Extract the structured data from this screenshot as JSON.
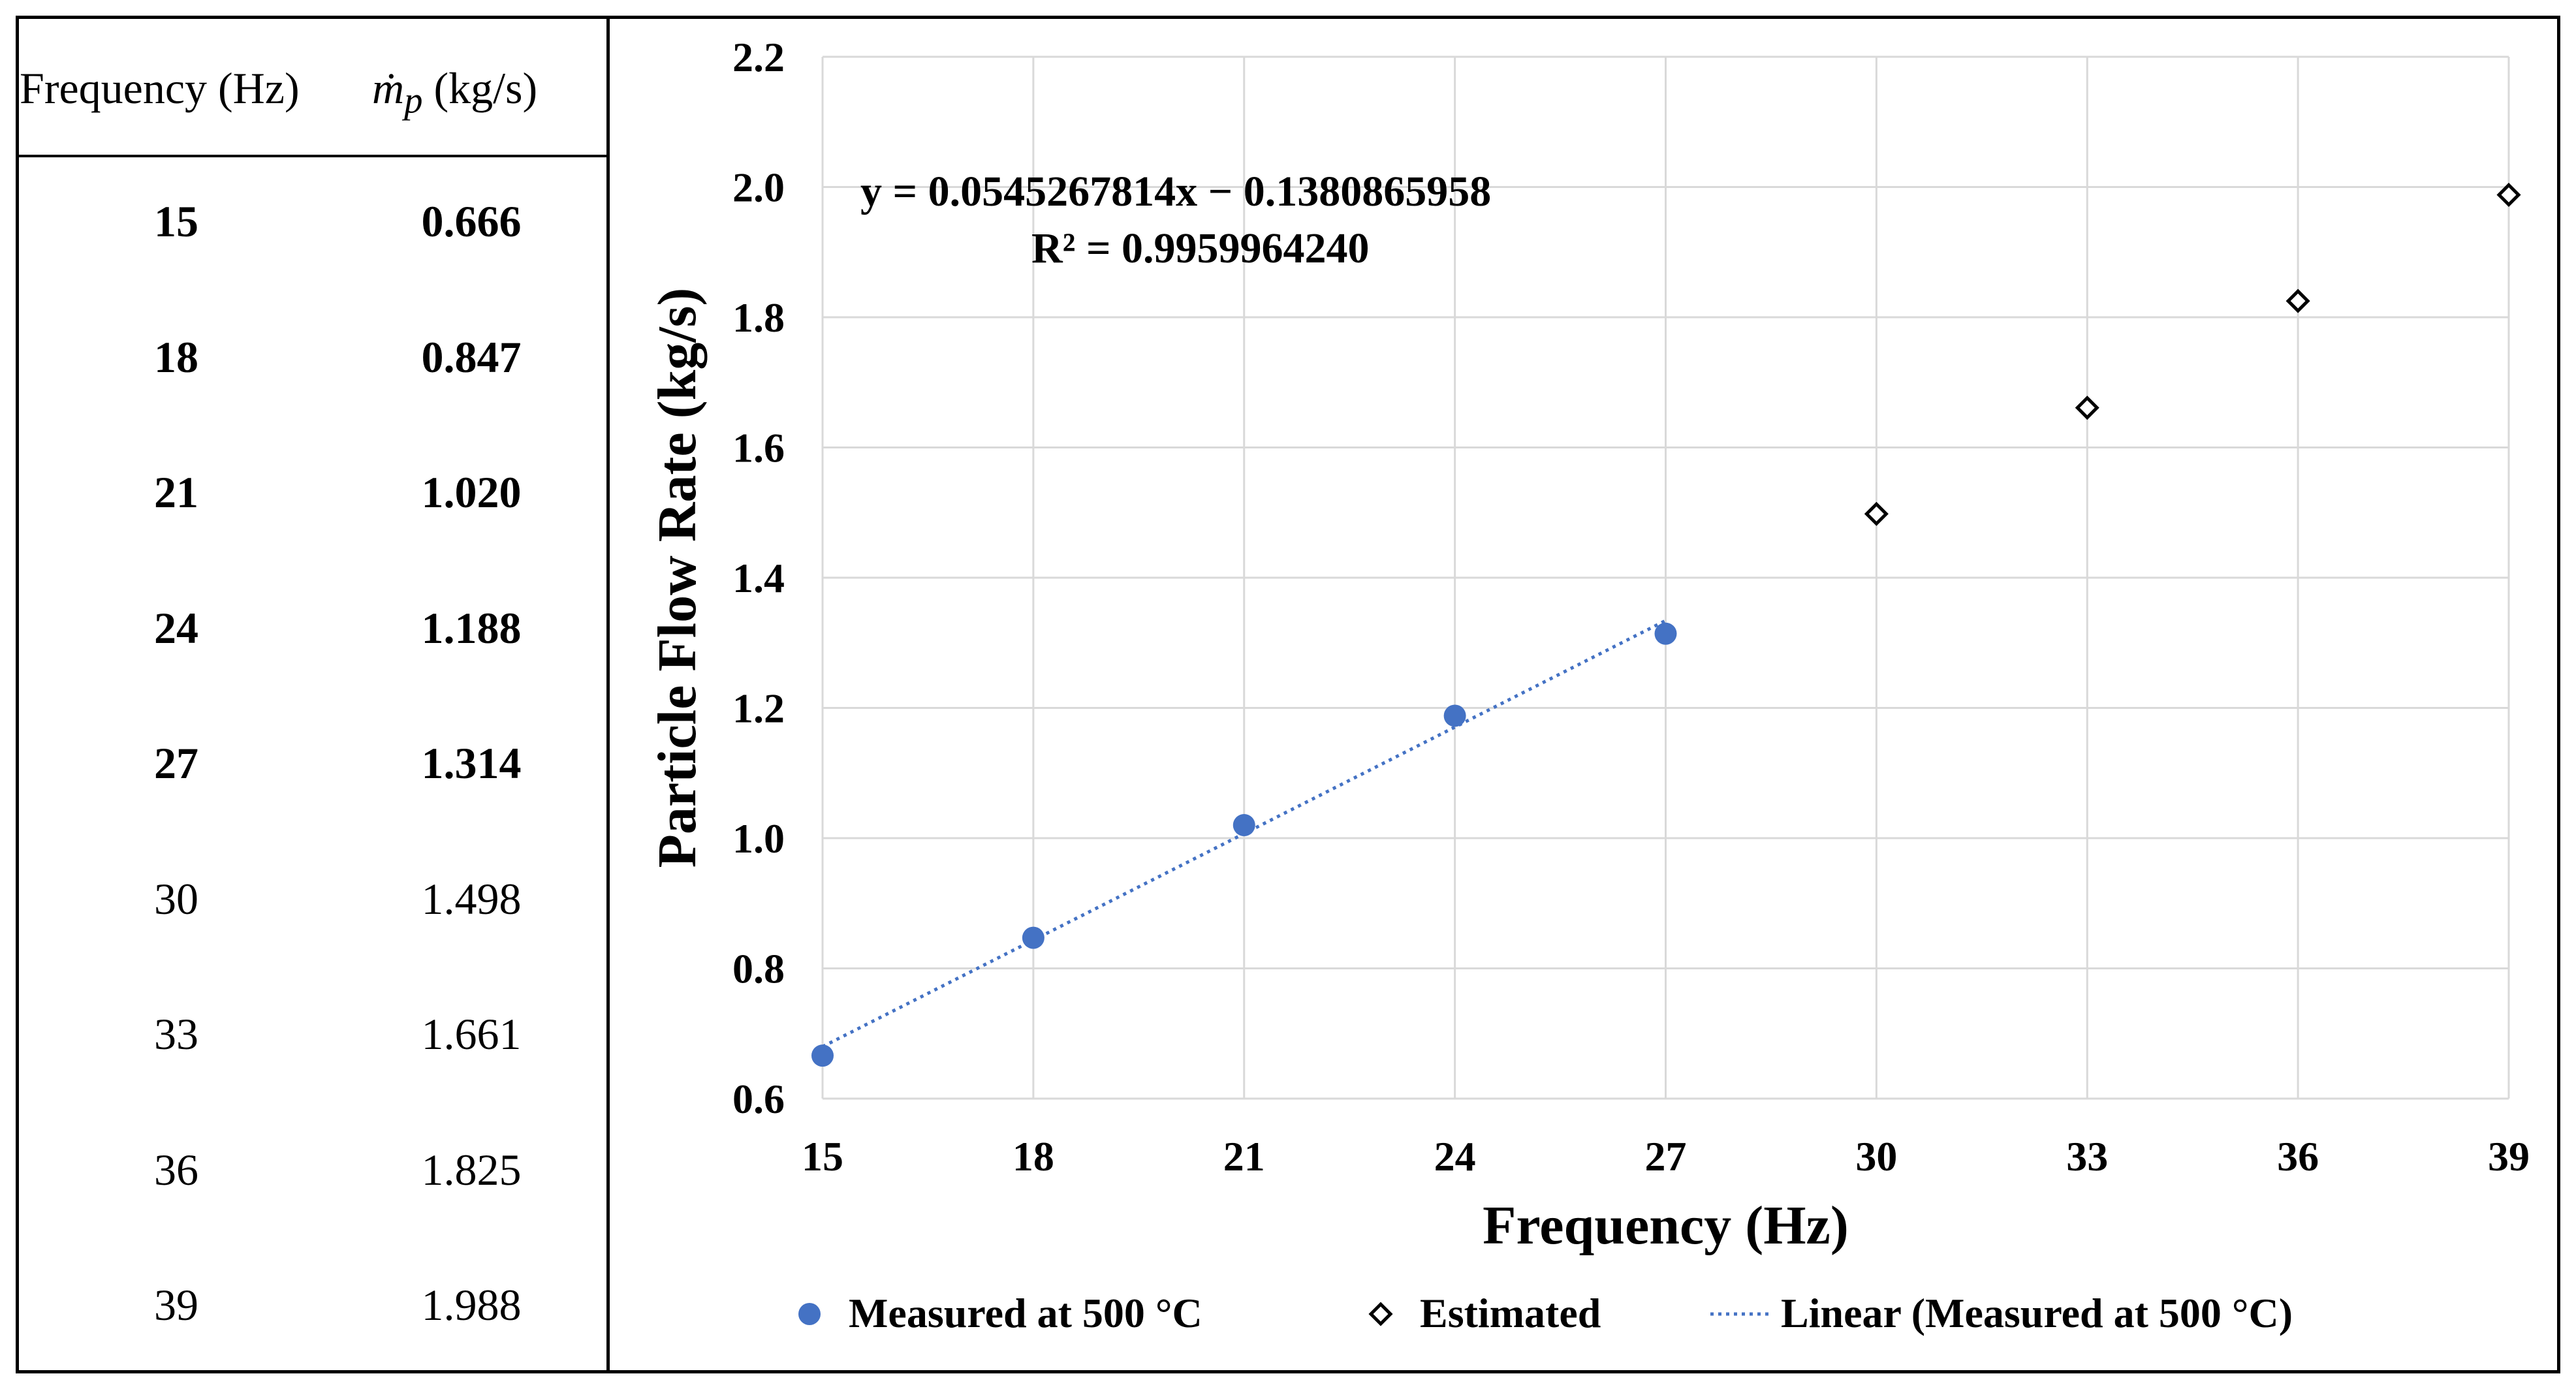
{
  "table": {
    "headers": {
      "frequency": "Frequency  (Hz)",
      "flow_symbol": "ṁ",
      "flow_subscript": "p",
      "flow_unit": " (kg/s)"
    },
    "rows": [
      {
        "frequency": "15",
        "flow": "0.666",
        "bold": true
      },
      {
        "frequency": "18",
        "flow": "0.847",
        "bold": true
      },
      {
        "frequency": "21",
        "flow": "1.020",
        "bold": true
      },
      {
        "frequency": "24",
        "flow": "1.188",
        "bold": true
      },
      {
        "frequency": "27",
        "flow": "1.314",
        "bold": true
      },
      {
        "frequency": "30",
        "flow": "1.498",
        "bold": false
      },
      {
        "frequency": "33",
        "flow": "1.661",
        "bold": false
      },
      {
        "frequency": "36",
        "flow": "1.825",
        "bold": false
      },
      {
        "frequency": "39",
        "flow": "1.988",
        "bold": false
      }
    ]
  },
  "chart_data": {
    "type": "scatter",
    "xlabel": "Frequency (Hz)",
    "ylabel": "Particle Flow Rate (kg/s)",
    "xlim": [
      15,
      39
    ],
    "ylim": [
      0.6,
      2.2
    ],
    "xticks": [
      15,
      18,
      21,
      24,
      27,
      30,
      33,
      36,
      39
    ],
    "yticks": [
      0.6,
      0.8,
      1.0,
      1.2,
      1.4,
      1.6,
      1.8,
      2.0,
      2.2
    ],
    "xtick_labels": [
      "15",
      "18",
      "21",
      "24",
      "27",
      "30",
      "33",
      "36",
      "39"
    ],
    "ytick_labels": [
      "0.6",
      "0.8",
      "1.0",
      "1.2",
      "1.4",
      "1.6",
      "1.8",
      "2.0",
      "2.2"
    ],
    "grid": true,
    "series": [
      {
        "name": "Measured at 500 °C",
        "marker": "circle",
        "color": "#4472c4",
        "x": [
          15,
          18,
          21,
          24,
          27
        ],
        "y": [
          0.666,
          0.847,
          1.02,
          1.188,
          1.314
        ]
      },
      {
        "name": "Estimated",
        "marker": "diamond-open",
        "color": "#000000",
        "x": [
          30,
          33,
          36,
          39
        ],
        "y": [
          1.498,
          1.661,
          1.825,
          1.988
        ]
      }
    ],
    "trendline": {
      "name": "Linear (Measured at 500 °C)",
      "style": "dotted",
      "color": "#4472c4",
      "slope": 0.0545267814,
      "intercept": -0.1380865958,
      "x_range": [
        15,
        27
      ]
    },
    "annotation": {
      "equation": "y = 0.0545267814x − 0.1380865958",
      "r2": "R² = 0.9959964240"
    },
    "legend": {
      "position": "bottom",
      "items": [
        "Measured at 500 °C",
        "Estimated",
        "Linear (Measured at 500 °C)"
      ]
    }
  }
}
